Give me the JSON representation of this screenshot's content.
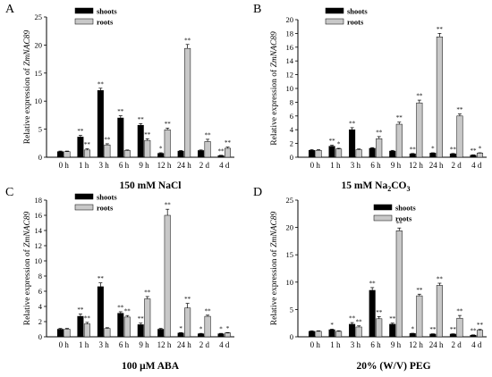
{
  "figure": {
    "y_axis_label_prefix": "Relative expression of ",
    "y_axis_label_gene": "ZmNAC89"
  },
  "chart_data": [
    {
      "type": "bar",
      "panel": "A",
      "xlabel_main": "150 mM NaCl",
      "xlabel_sub": "",
      "xlabel_tail": "",
      "categories": [
        "0 h",
        "1 h",
        "3 h",
        "6 h",
        "9 h",
        "12 h",
        "24 h",
        "2 d",
        "4 d"
      ],
      "ylim": [
        0,
        25
      ],
      "yticks": [
        0,
        5,
        10,
        15,
        20,
        25
      ],
      "legend": "top-left",
      "series": [
        {
          "name": "shoots",
          "color": "#000000",
          "values": [
            1.0,
            3.6,
            11.9,
            7.0,
            5.7,
            0.7,
            1.1,
            1.2,
            0.3
          ],
          "errors": [
            0.1,
            0.3,
            0.4,
            0.4,
            0.3,
            0.1,
            0.1,
            0.1,
            0.05
          ],
          "sig": [
            "",
            "**",
            "**",
            "**",
            "**",
            "*",
            "",
            "",
            "**"
          ]
        },
        {
          "name": "roots",
          "color": "#c8c8c8",
          "values": [
            1.0,
            1.3,
            2.2,
            1.2,
            3.0,
            4.9,
            19.4,
            2.8,
            1.6
          ],
          "errors": [
            0.1,
            0.2,
            0.2,
            0.1,
            0.3,
            0.3,
            0.7,
            0.4,
            0.2
          ],
          "sig": [
            "",
            "**",
            "**",
            "",
            "**",
            "**",
            "**",
            "**",
            "**"
          ]
        }
      ]
    },
    {
      "type": "bar",
      "panel": "B",
      "xlabel_main": "15 mM Na",
      "xlabel_sub": "2",
      "xlabel_tail": "CO",
      "xlabel_sub2": "3",
      "categories": [
        "0 h",
        "1 h",
        "3 h",
        "6 h",
        "9 h",
        "12 h",
        "24 h",
        "2 d",
        "4 d"
      ],
      "ylim": [
        0,
        20
      ],
      "yticks": [
        0,
        2,
        4,
        6,
        8,
        10,
        12,
        14,
        16,
        18,
        20
      ],
      "legend": "top-left",
      "series": [
        {
          "name": "shoots",
          "color": "#000000",
          "values": [
            1.0,
            1.6,
            4.0,
            1.3,
            0.9,
            0.5,
            0.6,
            0.5,
            0.3
          ],
          "errors": [
            0.1,
            0.15,
            0.3,
            0.1,
            0.1,
            0.05,
            0.05,
            0.05,
            0.05
          ],
          "sig": [
            "",
            "**",
            "**",
            "",
            "",
            "**",
            "*",
            "**",
            "**"
          ]
        },
        {
          "name": "roots",
          "color": "#c8c8c8",
          "values": [
            1.0,
            1.2,
            1.1,
            2.7,
            4.8,
            7.9,
            17.5,
            6.0,
            0.6
          ],
          "errors": [
            0.1,
            0.1,
            0.1,
            0.3,
            0.3,
            0.4,
            0.5,
            0.3,
            0.05
          ],
          "sig": [
            "",
            "*",
            "",
            "**",
            "**",
            "**",
            "**",
            "**",
            "*"
          ]
        }
      ]
    },
    {
      "type": "bar",
      "panel": "C",
      "xlabel_main": "100 μM ABA",
      "xlabel_sub": "",
      "xlabel_tail": "",
      "categories": [
        "0 h",
        "1 h",
        "3 h",
        "6 h",
        "9 h",
        "12 h",
        "24 h",
        "2 d",
        "4 d"
      ],
      "ylim": [
        0,
        18
      ],
      "yticks": [
        0,
        2,
        4,
        6,
        8,
        10,
        12,
        14,
        16,
        18
      ],
      "legend": "top-left",
      "series": [
        {
          "name": "shoots",
          "color": "#000000",
          "values": [
            1.0,
            2.7,
            6.6,
            3.1,
            1.6,
            1.0,
            0.5,
            0.4,
            0.4
          ],
          "errors": [
            0.1,
            0.3,
            0.5,
            0.2,
            0.2,
            0.1,
            0.05,
            0.05,
            0.05
          ],
          "sig": [
            "",
            "**",
            "**",
            "**",
            "**",
            "",
            "*",
            "*",
            "*"
          ]
        },
        {
          "name": "roots",
          "color": "#c8c8c8",
          "values": [
            1.0,
            1.7,
            1.1,
            2.6,
            5.0,
            16.0,
            3.8,
            2.7,
            0.5
          ],
          "errors": [
            0.1,
            0.2,
            0.1,
            0.2,
            0.3,
            0.8,
            0.6,
            0.15,
            0.05
          ],
          "sig": [
            "",
            "**",
            "",
            "**",
            "**",
            "**",
            "**",
            "**",
            "*"
          ]
        }
      ]
    },
    {
      "type": "bar",
      "panel": "D",
      "xlabel_main": "20% (W/V) PEG",
      "xlabel_sub": "",
      "xlabel_tail": "",
      "categories": [
        "0 h",
        "1 h",
        "3 h",
        "6 h",
        "9 h",
        "12 h",
        "24 h",
        "2 d",
        "4 d"
      ],
      "ylim": [
        0,
        25
      ],
      "yticks": [
        0,
        5,
        10,
        15,
        20,
        25
      ],
      "legend": "top-center",
      "series": [
        {
          "name": "shoots",
          "color": "#000000",
          "values": [
            1.0,
            1.3,
            2.3,
            8.5,
            2.3,
            0.6,
            0.5,
            0.5,
            0.3
          ],
          "errors": [
            0.1,
            0.1,
            0.3,
            0.5,
            0.2,
            0.05,
            0.05,
            0.05,
            0.05
          ],
          "sig": [
            "",
            "*",
            "**",
            "**",
            "**",
            "*",
            "**",
            "**",
            "**"
          ]
        },
        {
          "name": "roots",
          "color": "#c8c8c8",
          "values": [
            1.0,
            1.0,
            1.8,
            3.3,
            19.4,
            7.5,
            9.4,
            3.4,
            1.2
          ],
          "errors": [
            0.1,
            0.1,
            0.2,
            0.4,
            0.5,
            0.3,
            0.4,
            0.5,
            0.15
          ],
          "sig": [
            "",
            "",
            "**",
            "**",
            "**",
            "**",
            "**",
            "**",
            "**"
          ]
        }
      ]
    }
  ]
}
